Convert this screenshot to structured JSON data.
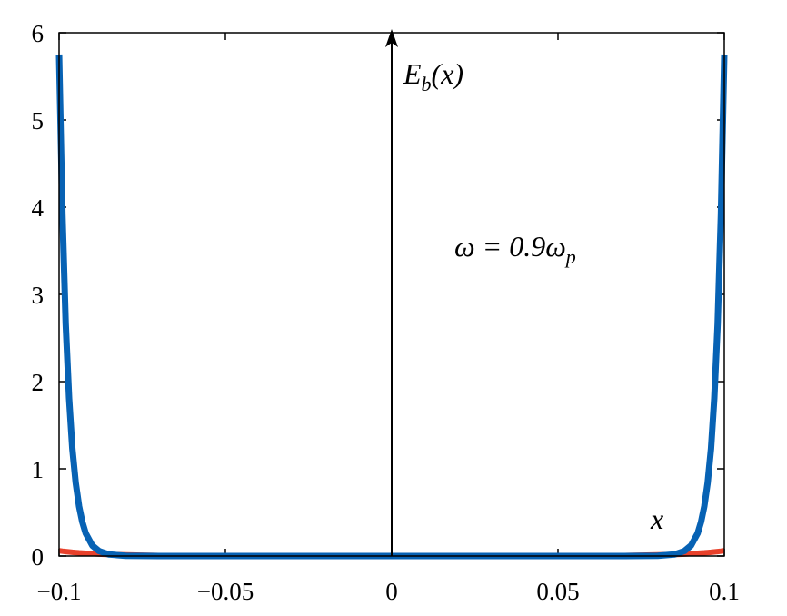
{
  "chart_data": {
    "type": "line",
    "title": "",
    "xlabel": "x",
    "ylabel": "E_b(x)",
    "annotation": "ω = 0.9ω_p",
    "xlim": [
      -0.1,
      0.1
    ],
    "ylim": [
      0,
      6
    ],
    "xticks": [
      -0.1,
      -0.05,
      0,
      0.05,
      0.1
    ],
    "xtick_labels": [
      "−0.1",
      "−0.05",
      "0",
      "0.05",
      "0.1"
    ],
    "yticks": [
      0,
      1,
      2,
      3,
      4,
      5,
      6
    ],
    "ytick_labels": [
      "0",
      "1",
      "2",
      "3",
      "4",
      "5",
      "6"
    ],
    "grid": false,
    "x": [
      -0.1,
      -0.099,
      -0.098,
      -0.097,
      -0.096,
      -0.095,
      -0.094,
      -0.093,
      -0.092,
      -0.09,
      -0.088,
      -0.085,
      -0.08,
      -0.07,
      -0.05,
      0,
      0.05,
      0.07,
      0.08,
      0.085,
      0.088,
      0.09,
      0.092,
      0.093,
      0.094,
      0.095,
      0.096,
      0.097,
      0.098,
      0.099,
      0.1
    ],
    "series": [
      {
        "name": "red",
        "color": "#E8412B",
        "values": [
          0.06,
          0.055,
          0.051,
          0.047,
          0.043,
          0.04,
          0.036,
          0.034,
          0.031,
          0.027,
          0.022,
          0.017,
          0.012,
          0.005,
          0.001,
          0,
          0.001,
          0.005,
          0.012,
          0.017,
          0.022,
          0.027,
          0.031,
          0.034,
          0.036,
          0.04,
          0.043,
          0.047,
          0.051,
          0.055,
          0.06
        ]
      },
      {
        "name": "blue",
        "color": "#0762B4",
        "values": [
          5.75,
          3.91,
          2.66,
          1.81,
          1.23,
          0.84,
          0.57,
          0.39,
          0.26,
          0.12,
          0.057,
          0.018,
          0.003,
          0,
          0,
          0,
          0,
          0,
          0.003,
          0.018,
          0.057,
          0.12,
          0.26,
          0.39,
          0.57,
          0.84,
          1.23,
          1.81,
          2.66,
          3.91,
          5.75
        ]
      }
    ],
    "labels": {
      "ylabel_main": "E",
      "ylabel_sub": "b",
      "ylabel_arg": "(x)",
      "omega": "ω = 0.9ω",
      "omega_sub": "p"
    }
  }
}
